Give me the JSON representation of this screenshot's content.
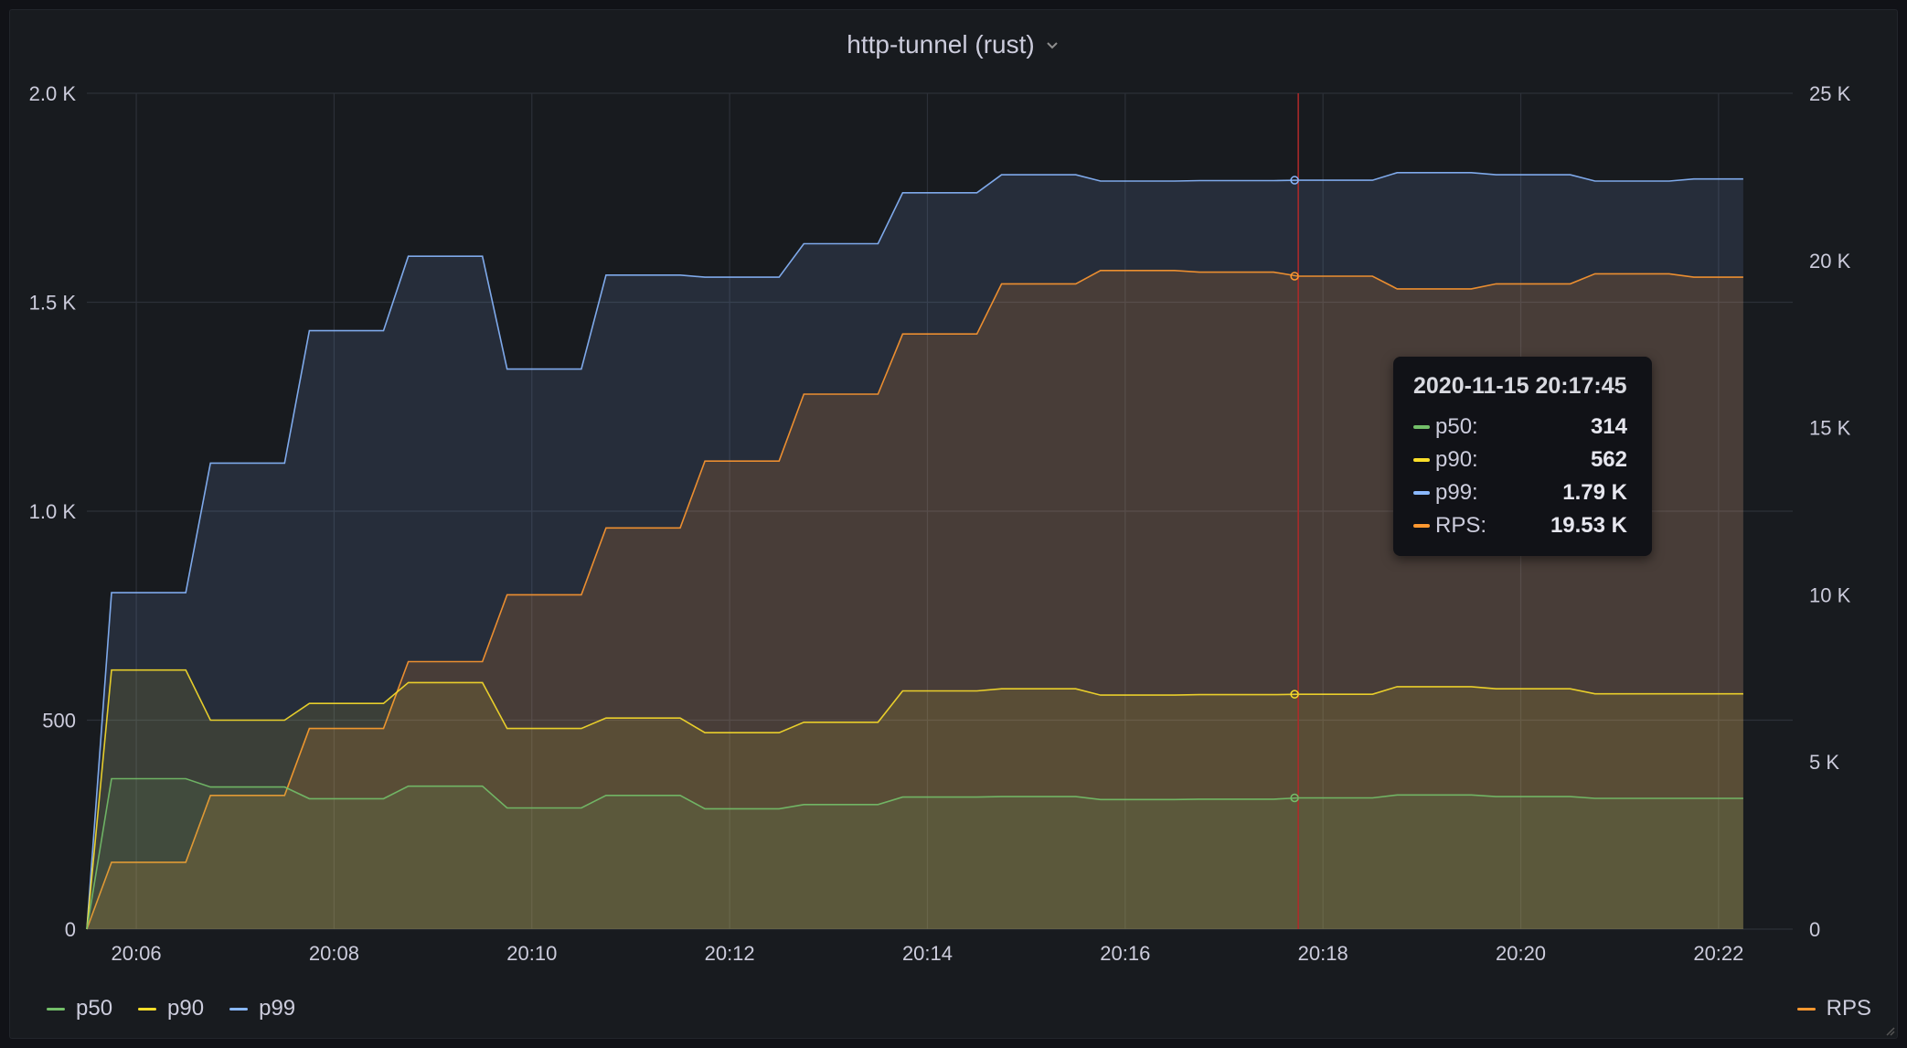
{
  "panel": {
    "title": "http-tunnel (rust)",
    "title_menu_icon": "chevron-down-icon",
    "background": "#181b1f"
  },
  "chart_data": {
    "type": "area",
    "x_axis": {
      "ticks": [
        "20:06",
        "20:08",
        "20:10",
        "20:12",
        "20:14",
        "20:16",
        "20:18",
        "20:20",
        "20:22"
      ],
      "tick_minutes": [
        6,
        8,
        10,
        12,
        14,
        16,
        18,
        20,
        22
      ],
      "xlim_minutes": [
        5.5,
        22.75
      ]
    },
    "y_left": {
      "ticks": [
        "0",
        "500",
        "1.0 K",
        "1.5 K",
        "2.0 K"
      ],
      "tick_values": [
        0,
        500,
        1000,
        1500,
        2000
      ],
      "ylim": [
        0,
        2000
      ]
    },
    "y_right": {
      "ticks": [
        "0",
        "5 K",
        "10 K",
        "15 K",
        "20 K",
        "25 K"
      ],
      "tick_values": [
        0,
        5000,
        10000,
        15000,
        20000,
        25000
      ],
      "ylim": [
        0,
        25000
      ]
    },
    "grid": true,
    "x": [
      5.5,
      5.75,
      6.5,
      6.75,
      7.5,
      7.75,
      8.5,
      8.75,
      9.5,
      9.75,
      10.5,
      10.75,
      11.5,
      11.75,
      12.5,
      12.75,
      13.5,
      13.75,
      14.5,
      14.75,
      15.5,
      15.75,
      16.5,
      16.75,
      17.5,
      17.75,
      18.5,
      18.75,
      19.5,
      19.75,
      20.5,
      20.75,
      21.5,
      21.75,
      22.25
    ],
    "series": [
      {
        "name": "p50",
        "axis": "left",
        "color": "#73bf69",
        "values": [
          0,
          360,
          360,
          340,
          340,
          312,
          312,
          342,
          342,
          290,
          290,
          320,
          320,
          288,
          288,
          298,
          298,
          316,
          316,
          317,
          317,
          310,
          310,
          311,
          311,
          314,
          314,
          321,
          321,
          317,
          317,
          313,
          313,
          313,
          313
        ]
      },
      {
        "name": "p90",
        "axis": "left",
        "color": "#fade2a",
        "values": [
          0,
          620,
          620,
          500,
          500,
          540,
          540,
          590,
          590,
          480,
          480,
          505,
          505,
          470,
          470,
          495,
          495,
          570,
          570,
          575,
          575,
          560,
          560,
          561,
          561,
          562,
          562,
          580,
          580,
          575,
          575,
          563,
          563,
          563,
          563
        ]
      },
      {
        "name": "p99",
        "axis": "left",
        "color": "#8ab8ff",
        "values": [
          0,
          805,
          805,
          1115,
          1115,
          1432,
          1432,
          1610,
          1610,
          1340,
          1340,
          1565,
          1565,
          1560,
          1560,
          1640,
          1640,
          1762,
          1762,
          1805,
          1805,
          1790,
          1790,
          1791,
          1791,
          1792,
          1792,
          1810,
          1810,
          1805,
          1805,
          1790,
          1790,
          1795,
          1795
        ]
      },
      {
        "name": "RPS",
        "axis": "right",
        "color": "#ff9830",
        "values": [
          0,
          2000,
          2000,
          4000,
          4000,
          6000,
          6000,
          8000,
          8000,
          10000,
          10000,
          12000,
          12000,
          14000,
          14000,
          16000,
          16000,
          17800,
          17800,
          19300,
          19300,
          19700,
          19700,
          19650,
          19650,
          19530,
          19530,
          19150,
          19150,
          19300,
          19300,
          19600,
          19600,
          19500,
          19500
        ]
      }
    ],
    "cursor": {
      "x_minutes": 17.75
    },
    "legend_left": [
      "p50",
      "p90",
      "p99"
    ],
    "legend_right": [
      "RPS"
    ]
  },
  "tooltip": {
    "time": "2020-11-15 20:17:45",
    "rows": [
      {
        "label": "p50:",
        "value": "314",
        "color": "#73bf69"
      },
      {
        "label": "p90:",
        "value": "562",
        "color": "#fade2a"
      },
      {
        "label": "p99:",
        "value": "1.79 K",
        "color": "#8ab8ff"
      },
      {
        "label": "RPS:",
        "value": "19.53 K",
        "color": "#ff9830"
      }
    ]
  },
  "legend": {
    "left": [
      {
        "name": "p50",
        "color": "#73bf69"
      },
      {
        "name": "p90",
        "color": "#fade2a"
      },
      {
        "name": "p99",
        "color": "#8ab8ff"
      }
    ],
    "right": [
      {
        "name": "RPS",
        "color": "#ff9830"
      }
    ]
  }
}
